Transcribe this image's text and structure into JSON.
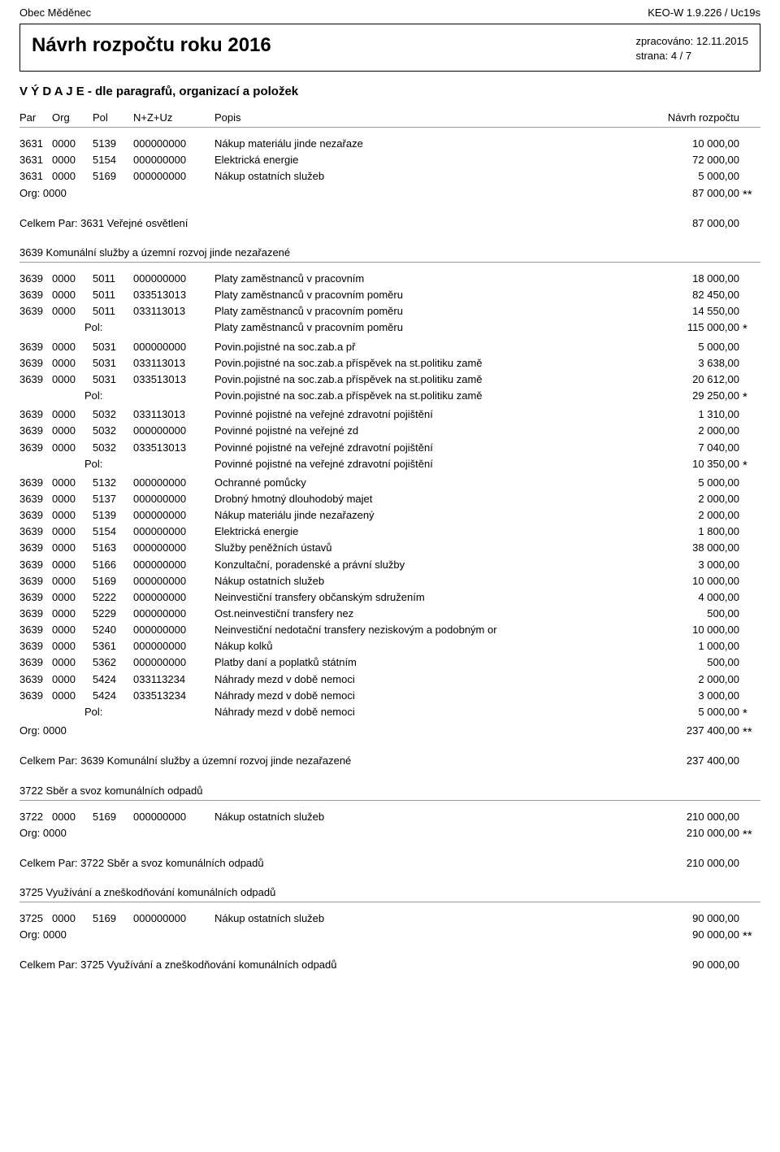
{
  "header": {
    "org_name": "Obec Měděnec",
    "app_id": "KEO-W 1.9.226 / Uc19s",
    "title": "Návrh rozpočtu roku 2016",
    "processed_label": "zpracováno:",
    "processed_date": "12.11.2015",
    "page_label": "strana:",
    "page_value": "4 / 7",
    "subtitle": "V Ý D A J E - dle paragrafů, organizací a položek"
  },
  "columns": {
    "par": "Par",
    "org": "Org",
    "pol": "Pol",
    "nzuz": "N+Z+Uz",
    "popis": "Popis",
    "navrh": "Návrh rozpočtu"
  },
  "block1": {
    "rows": [
      {
        "par": "3631",
        "org": "0000",
        "pol": "5139",
        "nzuz": "000000000",
        "popis": "Nákup materiálu jinde nezařaze",
        "val": "10 000,00"
      },
      {
        "par": "3631",
        "org": "0000",
        "pol": "5154",
        "nzuz": "000000000",
        "popis": "Elektrická energie",
        "val": "72 000,00"
      },
      {
        "par": "3631",
        "org": "0000",
        "pol": "5169",
        "nzuz": "000000000",
        "popis": "Nákup ostatních služeb",
        "val": "5 000,00"
      }
    ],
    "org_line": {
      "label": "Org: 0000",
      "val": "87 000,00",
      "star": "**"
    },
    "total": {
      "label": "Celkem Par: 3631 Veřejné osvětlení",
      "val": "87 000,00"
    }
  },
  "block2": {
    "title": "3639 Komunální služby a územní rozvoj jinde nezařazené",
    "rows": [
      {
        "par": "3639",
        "org": "0000",
        "pol": "5011",
        "nzuz": "000000000",
        "popis": "Platy zaměstnanců v pracovním",
        "val": "18 000,00"
      },
      {
        "par": "3639",
        "org": "0000",
        "pol": "5011",
        "nzuz": "033513013",
        "popis": "Platy zaměstnanců v pracovním poměru",
        "val": "82 450,00"
      },
      {
        "par": "3639",
        "org": "0000",
        "pol": "5011",
        "nzuz": "033113013",
        "popis": "Platy zaměstnanců v pracovním poměru",
        "val": "14 550,00"
      },
      {
        "type": "pol",
        "label": "Pol:",
        "popis": "Platy zaměstnanců v pracovním poměru",
        "val": "115 000,00",
        "star": "*"
      },
      {
        "par": "3639",
        "org": "0000",
        "pol": "5031",
        "nzuz": "000000000",
        "popis": "Povin.pojistné na soc.zab.a př",
        "val": "5 000,00"
      },
      {
        "par": "3639",
        "org": "0000",
        "pol": "5031",
        "nzuz": "033113013",
        "popis": "Povin.pojistné na soc.zab.a příspěvek na st.politiku zamě",
        "val": "3 638,00"
      },
      {
        "par": "3639",
        "org": "0000",
        "pol": "5031",
        "nzuz": "033513013",
        "popis": "Povin.pojistné na soc.zab.a příspěvek na st.politiku zamě",
        "val": "20 612,00"
      },
      {
        "type": "pol",
        "label": "Pol:",
        "popis": "Povin.pojistné na soc.zab.a příspěvek na st.politiku zamě",
        "val": "29 250,00",
        "star": "*"
      },
      {
        "par": "3639",
        "org": "0000",
        "pol": "5032",
        "nzuz": "033113013",
        "popis": "Povinné pojistné na veřejné zdravotní pojištění",
        "val": "1 310,00"
      },
      {
        "par": "3639",
        "org": "0000",
        "pol": "5032",
        "nzuz": "000000000",
        "popis": "Povinné pojistné na veřejné zd",
        "val": "2 000,00"
      },
      {
        "par": "3639",
        "org": "0000",
        "pol": "5032",
        "nzuz": "033513013",
        "popis": "Povinné pojistné na veřejné zdravotní pojištění",
        "val": "7 040,00"
      },
      {
        "type": "pol",
        "label": "Pol:",
        "popis": "Povinné pojistné na veřejné zdravotní pojištění",
        "val": "10 350,00",
        "star": "*"
      },
      {
        "par": "3639",
        "org": "0000",
        "pol": "5132",
        "nzuz": "000000000",
        "popis": "Ochranné pomůcky",
        "val": "5 000,00"
      },
      {
        "par": "3639",
        "org": "0000",
        "pol": "5137",
        "nzuz": "000000000",
        "popis": "Drobný hmotný dlouhodobý majet",
        "val": "2 000,00"
      },
      {
        "par": "3639",
        "org": "0000",
        "pol": "5139",
        "nzuz": "000000000",
        "popis": "Nákup materiálu jinde nezařazený",
        "val": "2 000,00"
      },
      {
        "par": "3639",
        "org": "0000",
        "pol": "5154",
        "nzuz": "000000000",
        "popis": "Elektrická energie",
        "val": "1 800,00"
      },
      {
        "par": "3639",
        "org": "0000",
        "pol": "5163",
        "nzuz": "000000000",
        "popis": "Služby peněžních ústavů",
        "val": "38 000,00"
      },
      {
        "par": "3639",
        "org": "0000",
        "pol": "5166",
        "nzuz": "000000000",
        "popis": "Konzultační, poradenské a právní služby",
        "val": "3 000,00"
      },
      {
        "par": "3639",
        "org": "0000",
        "pol": "5169",
        "nzuz": "000000000",
        "popis": "Nákup ostatních služeb",
        "val": "10 000,00"
      },
      {
        "par": "3639",
        "org": "0000",
        "pol": "5222",
        "nzuz": "000000000",
        "popis": "Neinvestiční transfery občanským sdružením",
        "val": "4 000,00"
      },
      {
        "par": "3639",
        "org": "0000",
        "pol": "5229",
        "nzuz": "000000000",
        "popis": "Ost.neinvestiční transfery nez",
        "val": "500,00"
      },
      {
        "par": "3639",
        "org": "0000",
        "pol": "5240",
        "nzuz": "000000000",
        "popis": "Neinvestiční nedotační transfery neziskovým a podobným or",
        "val": "10 000,00"
      },
      {
        "par": "3639",
        "org": "0000",
        "pol": "5361",
        "nzuz": "000000000",
        "popis": "Nákup kolků",
        "val": "1 000,00"
      },
      {
        "par": "3639",
        "org": "0000",
        "pol": "5362",
        "nzuz": "000000000",
        "popis": "Platby daní a poplatků státním",
        "val": "500,00"
      },
      {
        "par": "3639",
        "org": "0000",
        "pol": "5424",
        "nzuz": "033113234",
        "popis": "Náhrady mezd v době nemoci",
        "val": "2 000,00"
      },
      {
        "par": "3639",
        "org": "0000",
        "pol": "5424",
        "nzuz": "033513234",
        "popis": "Náhrady mezd v době nemoci",
        "val": "3 000,00"
      },
      {
        "type": "pol",
        "label": "Pol:",
        "popis": "Náhrady mezd v době nemoci",
        "val": "5 000,00",
        "star": "*"
      }
    ],
    "org_line": {
      "label": "Org: 0000",
      "val": "237 400,00",
      "star": "**"
    },
    "total": {
      "label": "Celkem Par: 3639 Komunální služby a územní rozvoj jinde nezařazené",
      "val": "237 400,00"
    }
  },
  "block3": {
    "title": "3722 Sběr a svoz komunálních odpadů",
    "rows": [
      {
        "par": "3722",
        "org": "0000",
        "pol": "5169",
        "nzuz": "000000000",
        "popis": "Nákup ostatních služeb",
        "val": "210 000,00"
      }
    ],
    "org_line": {
      "label": "Org: 0000",
      "val": "210 000,00",
      "star": "**"
    },
    "total": {
      "label": "Celkem Par: 3722 Sběr a svoz komunálních odpadů",
      "val": "210 000,00"
    }
  },
  "block4": {
    "title": "3725 Využívání a zneškodňování komunálních odpadů",
    "rows": [
      {
        "par": "3725",
        "org": "0000",
        "pol": "5169",
        "nzuz": "000000000",
        "popis": "Nákup ostatních služeb",
        "val": "90 000,00"
      }
    ],
    "org_line": {
      "label": "Org: 0000",
      "val": "90 000,00",
      "star": "**"
    },
    "total": {
      "label": "Celkem Par: 3725 Využívání a zneškodňování komunálních odpadů",
      "val": "90 000,00"
    }
  }
}
